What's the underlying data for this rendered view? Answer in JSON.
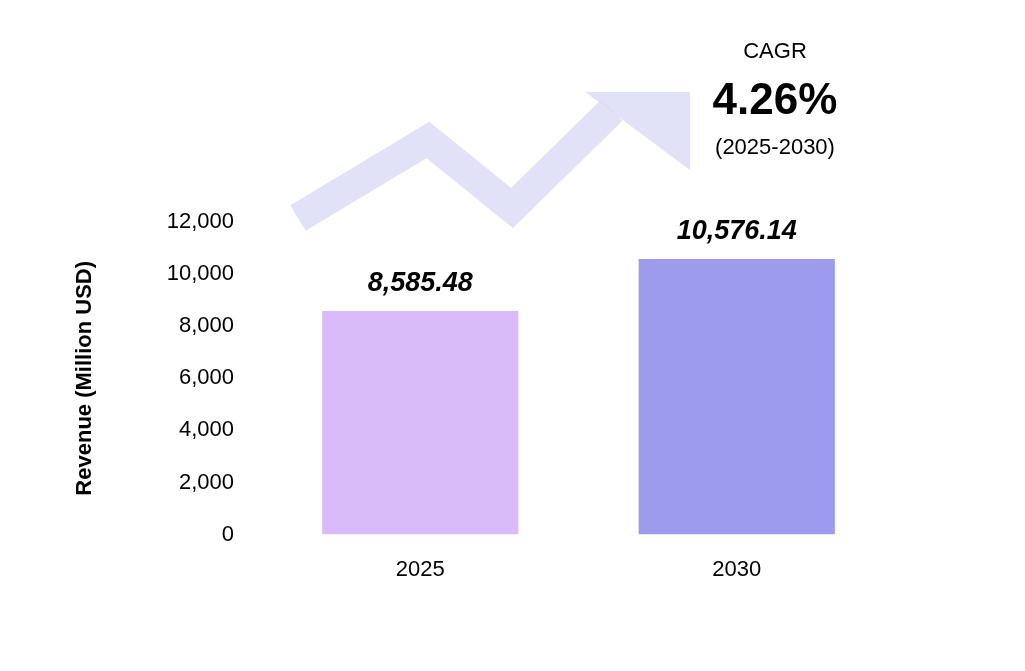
{
  "chart_data": {
    "type": "bar",
    "y_label": "Revenue (Million USD)",
    "categories": [
      "2025",
      "2030"
    ],
    "values": [
      8585.48,
      10576.14
    ],
    "value_labels": [
      "8,585.48",
      "10,576.14"
    ],
    "colors": [
      "#d8bbf8",
      "#9d9bec"
    ],
    "ylim": [
      0,
      12000
    ],
    "yticks": [
      0,
      {
        "value": 2000,
        "label": "2,000"
      },
      {
        "value": 4000,
        "label": "4,000"
      },
      {
        "value": 6000,
        "label": "6,000"
      },
      {
        "value": 8000,
        "label": "8,000"
      },
      {
        "value": 10000,
        "label": "10,000"
      },
      {
        "value": 12000,
        "label": "12,000"
      }
    ],
    "grid": false,
    "data_labels": true,
    "annotations": [
      "CAGR",
      "4.26%",
      "(2025-2030)"
    ]
  }
}
